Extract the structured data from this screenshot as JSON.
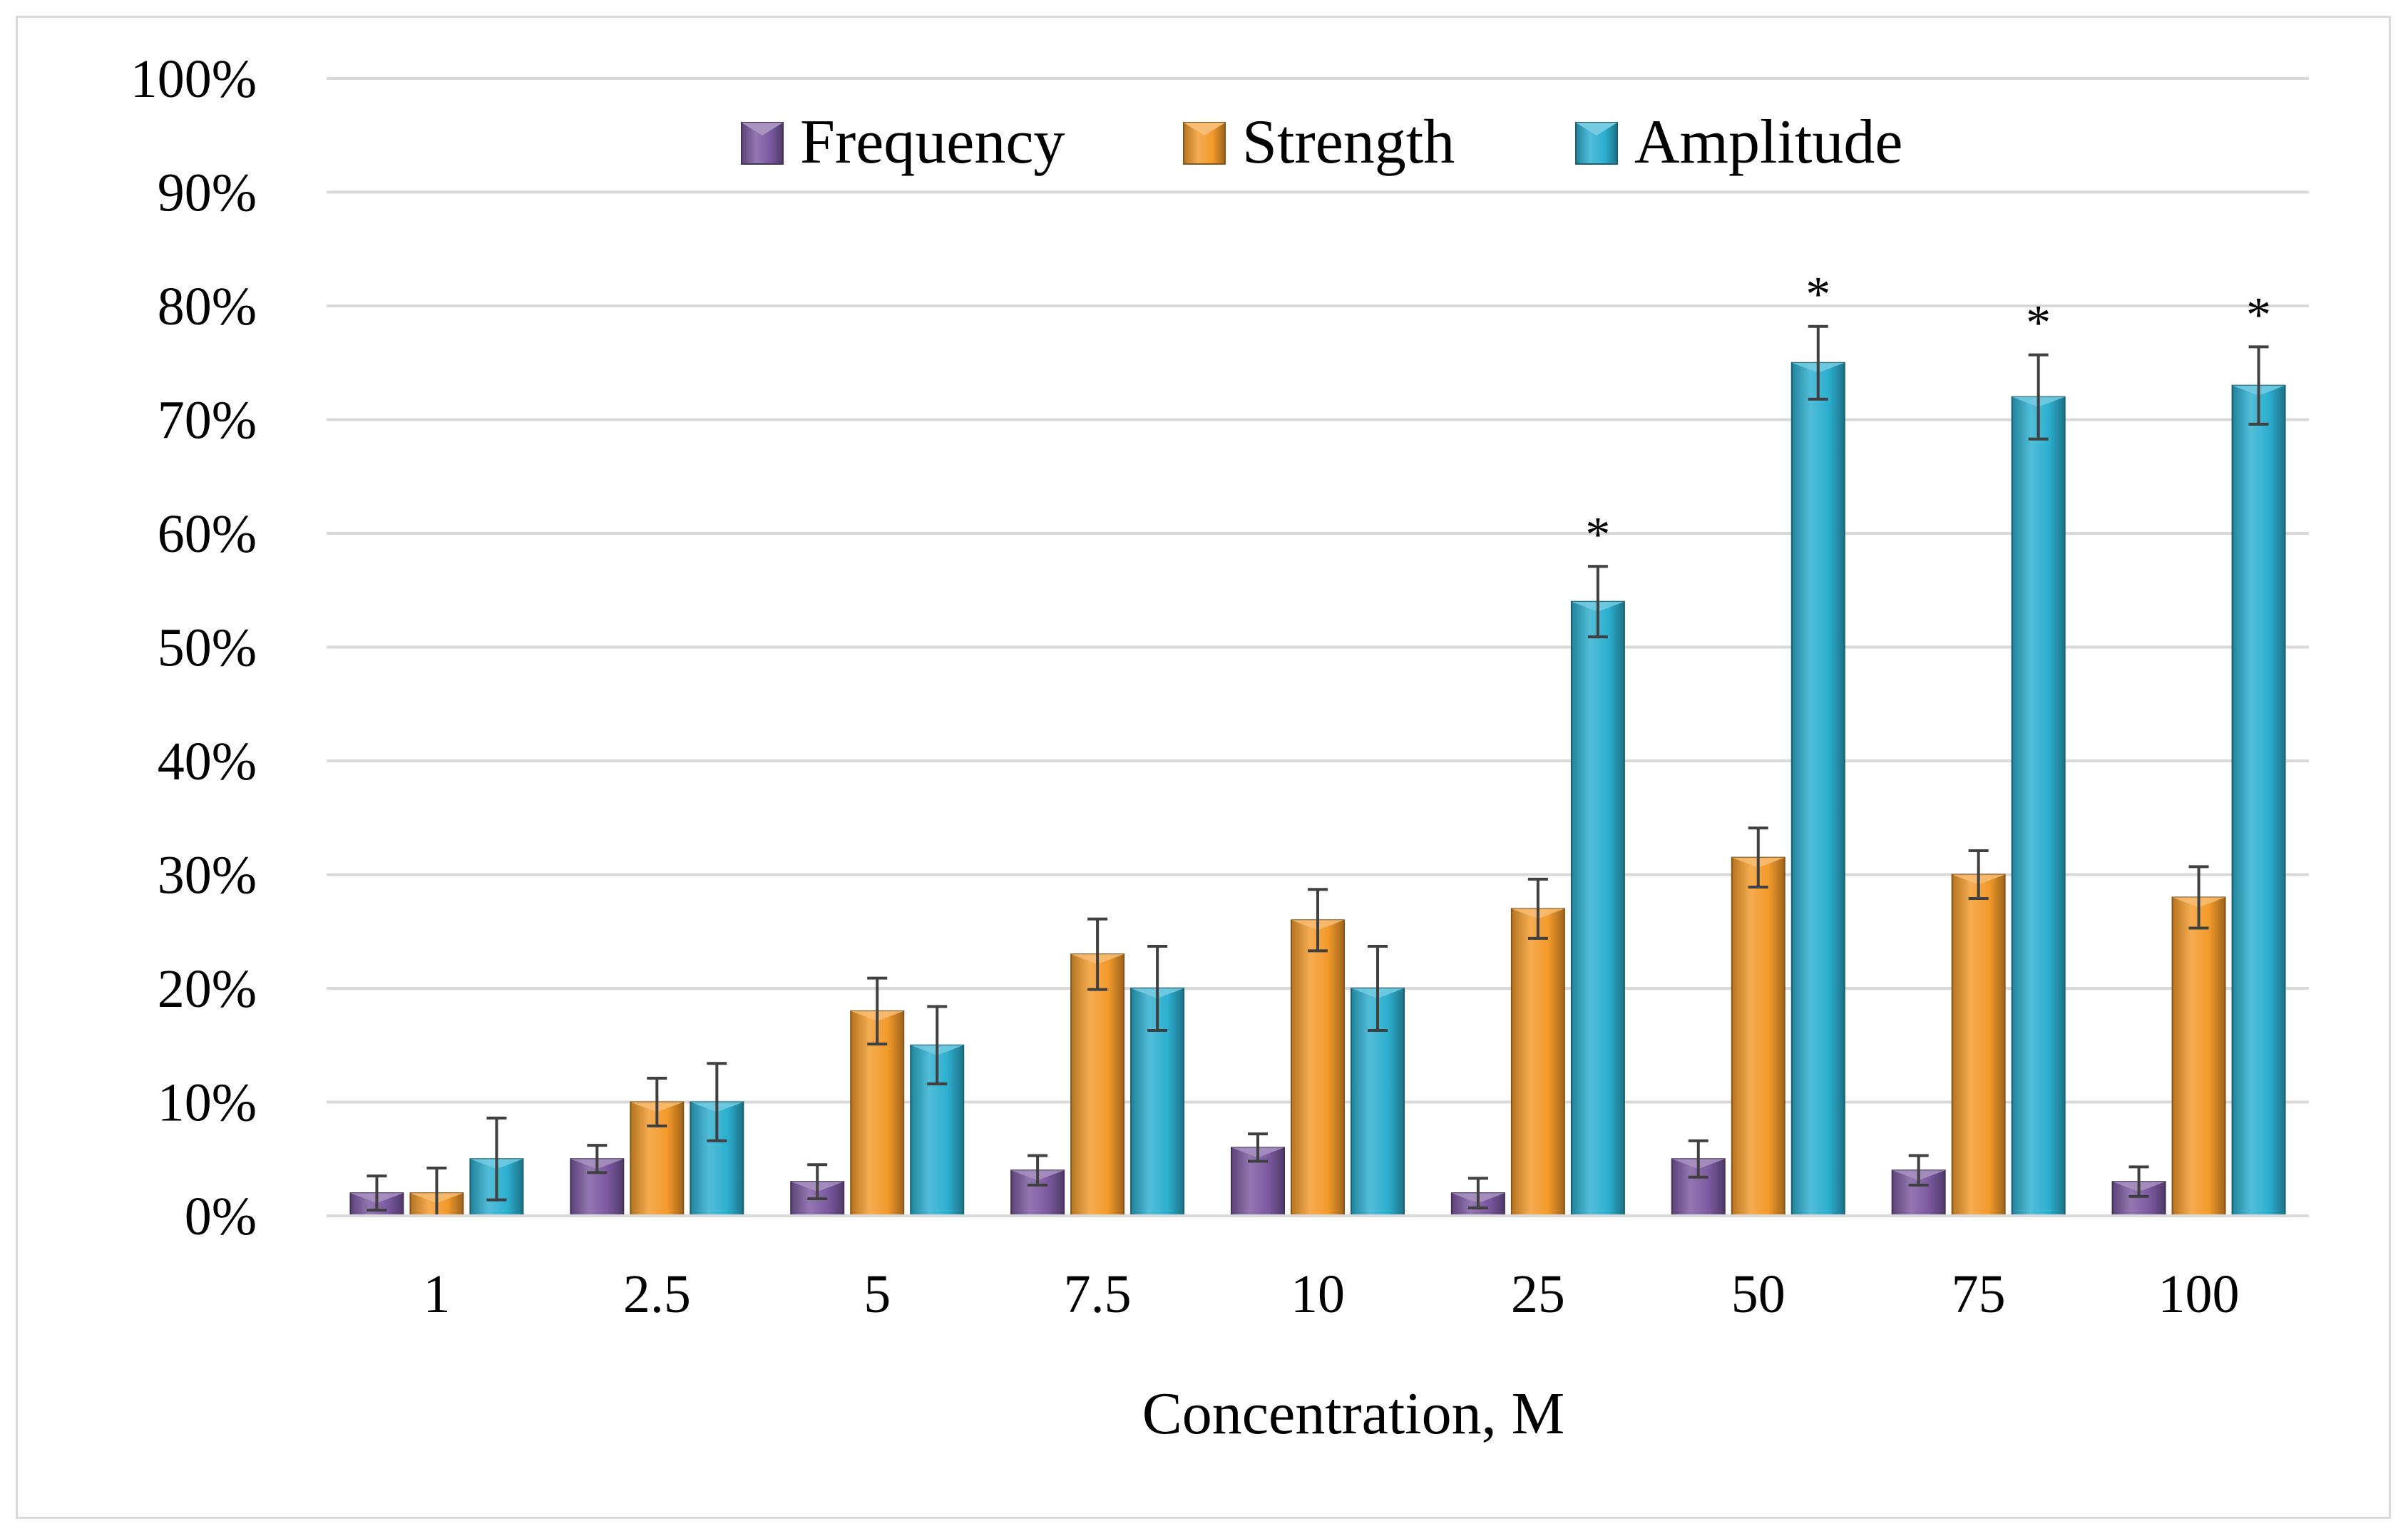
{
  "chart_data": {
    "type": "bar",
    "title": "",
    "xlabel": "Concentration, M",
    "ylabel": "",
    "ylim": [
      0,
      100
    ],
    "ytick_step": 10,
    "ytick_suffix": "%",
    "grid": true,
    "legend_position": "top-center",
    "categories": [
      "1",
      "2.5",
      "5",
      "7.5",
      "10",
      "25",
      "50",
      "75",
      "100"
    ],
    "series": [
      {
        "name": "Frequency",
        "color": "#7B59A0",
        "values": [
          2,
          5,
          3,
          4,
          6,
          2,
          5,
          4,
          3
        ],
        "errors": [
          1.5,
          1.2,
          1.5,
          1.3,
          1.2,
          1.3,
          1.6,
          1.3,
          1.3
        ]
      },
      {
        "name": "Strength",
        "color": "#F39A2B",
        "values": [
          2,
          10,
          18,
          23,
          26,
          27,
          31.5,
          30,
          28
        ],
        "errors": [
          2.2,
          2.1,
          2.9,
          3.1,
          2.7,
          2.6,
          2.6,
          2.1,
          2.7
        ]
      },
      {
        "name": "Amplitude",
        "color": "#2CAFCF",
        "values": [
          5,
          10,
          15,
          20,
          20,
          54,
          75,
          72,
          73
        ],
        "errors": [
          3.6,
          3.4,
          3.4,
          3.7,
          3.7,
          3.1,
          3.2,
          3.7,
          3.4
        ]
      }
    ],
    "annotations": [
      {
        "text": "*",
        "category": "25",
        "series": "Amplitude"
      },
      {
        "text": "*",
        "category": "50",
        "series": "Amplitude"
      },
      {
        "text": "*",
        "category": "75",
        "series": "Amplitude"
      },
      {
        "text": "*",
        "category": "100",
        "series": "Amplitude"
      }
    ]
  }
}
